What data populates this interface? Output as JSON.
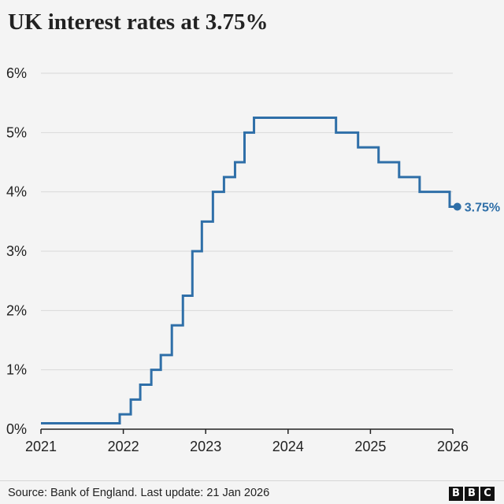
{
  "title": "UK interest rates at 3.75%",
  "source": "Source: Bank of England. Last update: 21 Jan 2026",
  "logo_letters": [
    "B",
    "B",
    "C"
  ],
  "colors": {
    "background": "#f4f4f4",
    "line": "#2f6fa8",
    "grid": "#d9d9d9",
    "axis": "#222222",
    "text": "#222222",
    "end_label": "#2f6fa8"
  },
  "chart_data": {
    "type": "line",
    "step": true,
    "title": "UK interest rates at 3.75%",
    "xlabel": "",
    "ylabel": "",
    "xlim": [
      2021,
      2026
    ],
    "ylim": [
      0,
      6
    ],
    "x_ticks": [
      2021,
      2022,
      2023,
      2024,
      2025,
      2026
    ],
    "y_ticks": [
      0,
      1,
      2,
      3,
      4,
      5,
      6
    ],
    "y_tick_labels": [
      "0%",
      "1%",
      "2%",
      "3%",
      "4%",
      "5%",
      "6%"
    ],
    "grid": true,
    "end_label": "3.75%",
    "series": [
      {
        "points": [
          [
            "2021-01-01",
            0.1
          ],
          [
            "2021-12-16",
            0.25
          ],
          [
            "2022-02-03",
            0.5
          ],
          [
            "2022-03-17",
            0.75
          ],
          [
            "2022-05-05",
            1.0
          ],
          [
            "2022-06-16",
            1.25
          ],
          [
            "2022-08-04",
            1.75
          ],
          [
            "2022-09-22",
            2.25
          ],
          [
            "2022-11-03",
            3.0
          ],
          [
            "2022-12-15",
            3.5
          ],
          [
            "2023-02-02",
            4.0
          ],
          [
            "2023-03-23",
            4.25
          ],
          [
            "2023-05-11",
            4.5
          ],
          [
            "2023-06-22",
            5.0
          ],
          [
            "2023-08-03",
            5.25
          ],
          [
            "2024-08-01",
            5.0
          ],
          [
            "2024-11-07",
            4.75
          ],
          [
            "2025-02-06",
            4.5
          ],
          [
            "2025-05-08",
            4.25
          ],
          [
            "2025-08-07",
            4.0
          ],
          [
            "2025-12-18",
            3.75
          ],
          [
            "2026-01-21",
            3.75
          ]
        ]
      }
    ]
  }
}
